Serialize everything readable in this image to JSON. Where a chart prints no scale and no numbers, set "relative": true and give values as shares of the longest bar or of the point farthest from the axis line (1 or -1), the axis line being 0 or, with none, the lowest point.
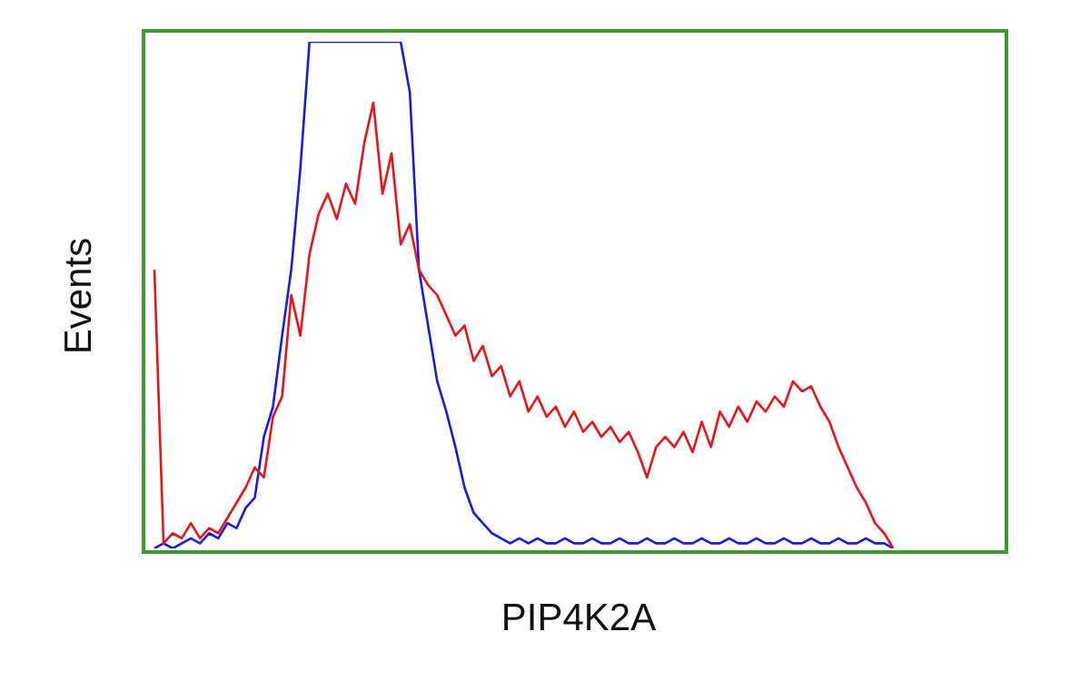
{
  "chart_data": {
    "type": "line",
    "relative": true,
    "xlabel": "PIP4K2A",
    "ylabel": "Events",
    "legend": false,
    "grid": false,
    "marker": "none",
    "line_style": "solid",
    "categories": [
      null,
      null,
      null,
      null,
      null,
      null,
      null,
      null,
      null,
      null,
      null,
      null,
      null,
      null,
      null,
      null,
      null,
      null,
      null,
      null,
      null,
      null,
      null,
      null,
      null,
      null,
      null,
      null,
      null,
      null,
      null,
      null,
      null,
      null,
      null,
      null,
      null,
      null,
      null,
      null,
      null,
      null,
      null,
      null,
      null,
      null,
      null,
      null,
      null,
      null,
      null,
      null,
      null,
      null,
      null,
      null,
      null,
      null,
      null,
      null,
      null,
      null,
      null,
      null,
      null,
      null,
      null,
      null,
      null,
      null,
      null,
      null,
      null,
      null,
      null,
      null,
      null,
      null,
      null,
      null,
      null,
      null,
      null,
      null,
      null,
      null,
      null,
      null,
      null,
      null,
      null,
      null,
      null,
      null
    ],
    "series": [
      {
        "color": "#1a1adc",
        "values": [
          0,
          0.01,
          0,
          0.01,
          0.02,
          0.01,
          0.03,
          0.02,
          0.05,
          0.04,
          0.08,
          0.1,
          0.22,
          0.28,
          0.42,
          0.55,
          0.75,
          1,
          1,
          1,
          1,
          1,
          1,
          1,
          1,
          1,
          1,
          1,
          0.9,
          0.55,
          0.44,
          0.33,
          0.27,
          0.2,
          0.12,
          0.07,
          0.05,
          0.03,
          0.02,
          0.01,
          0.02,
          0.01,
          0.02,
          0.01,
          0.01,
          0.02,
          0.01,
          0.01,
          0.02,
          0.01,
          0.01,
          0.02,
          0.01,
          0.01,
          0.02,
          0.01,
          0.01,
          0.02,
          0.01,
          0.01,
          0.02,
          0.01,
          0.01,
          0.02,
          0.01,
          0.01,
          0.02,
          0.01,
          0.01,
          0.02,
          0.01,
          0.01,
          0.02,
          0.01,
          0.01,
          0.02,
          0.01,
          0.01,
          0.02,
          0.01,
          0.01,
          0,
          null,
          null,
          null,
          null,
          null,
          null,
          null,
          null,
          null,
          null,
          null,
          null
        ]
      },
      {
        "color": "#e8141c",
        "values": [
          0.55,
          0.01,
          0.03,
          0.02,
          0.05,
          0.02,
          0.04,
          0.03,
          0.06,
          0.09,
          0.12,
          0.16,
          0.14,
          0.26,
          0.3,
          0.5,
          0.42,
          0.58,
          0.66,
          0.7,
          0.65,
          0.72,
          0.68,
          0.8,
          0.88,
          0.7,
          0.78,
          0.6,
          0.64,
          0.55,
          0.52,
          0.5,
          0.46,
          0.42,
          0.44,
          0.37,
          0.4,
          0.34,
          0.36,
          0.3,
          0.33,
          0.27,
          0.3,
          0.26,
          0.28,
          0.24,
          0.27,
          0.23,
          0.25,
          0.22,
          0.24,
          0.21,
          0.23,
          0.19,
          0.14,
          0.2,
          0.22,
          0.2,
          0.23,
          0.19,
          0.25,
          0.2,
          0.27,
          0.24,
          0.28,
          0.25,
          0.29,
          0.27,
          0.3,
          0.28,
          0.33,
          0.31,
          0.32,
          0.28,
          0.25,
          0.2,
          0.16,
          0.12,
          0.09,
          0.05,
          0.03,
          0,
          null,
          null,
          null,
          null,
          null,
          null,
          null,
          null,
          null,
          null,
          null,
          null
        ]
      }
    ]
  }
}
